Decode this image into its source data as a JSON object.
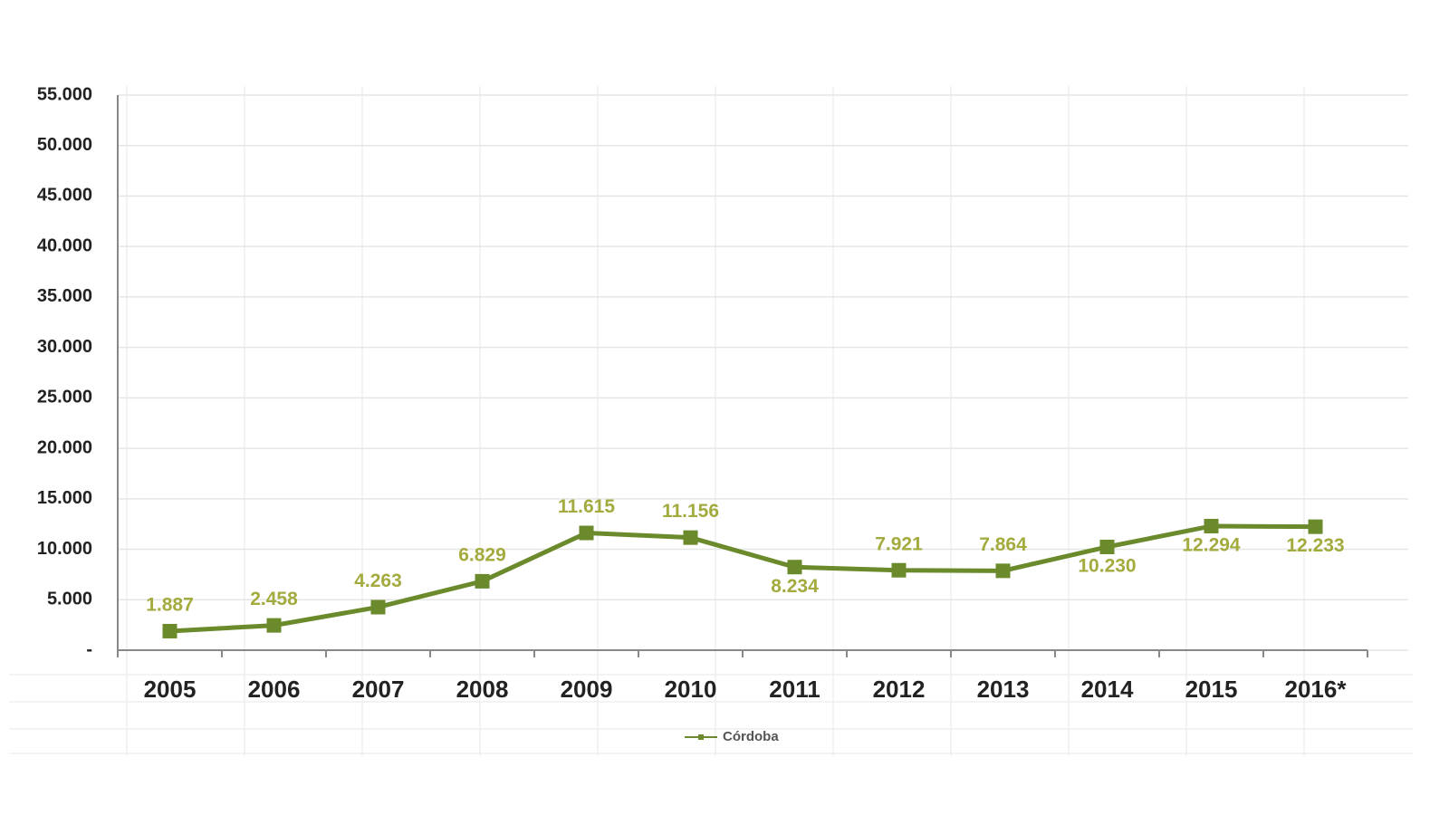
{
  "chart_data": {
    "type": "line",
    "categories": [
      "2005",
      "2006",
      "2007",
      "2008",
      "2009",
      "2010",
      "2011",
      "2012",
      "2013",
      "2014",
      "2015",
      "2016*"
    ],
    "series": [
      {
        "name": "Córdoba",
        "color": "#6b8a2c",
        "values": [
          1887,
          2458,
          4263,
          6829,
          11615,
          11156,
          8234,
          7921,
          7864,
          10230,
          12294,
          12233
        ],
        "value_labels": [
          "1.887",
          "2.458",
          "4.263",
          "6.829",
          "11.615",
          "11.156",
          "8.234",
          "7.921",
          "7.864",
          "10.230",
          "12.294",
          "12.233"
        ]
      }
    ],
    "ylim": [
      0,
      55000
    ],
    "yticks": [
      {
        "value": 0,
        "label": "-"
      },
      {
        "value": 5000,
        "label": "5.000"
      },
      {
        "value": 10000,
        "label": "10.000"
      },
      {
        "value": 15000,
        "label": "15.000"
      },
      {
        "value": 20000,
        "label": "20.000"
      },
      {
        "value": 25000,
        "label": "25.000"
      },
      {
        "value": 30000,
        "label": "30.000"
      },
      {
        "value": 35000,
        "label": "35.000"
      },
      {
        "value": 40000,
        "label": "40.000"
      },
      {
        "value": 45000,
        "label": "45.000"
      },
      {
        "value": 50000,
        "label": "50.000"
      },
      {
        "value": 55000,
        "label": "55.000"
      }
    ],
    "grid": true,
    "legend": "bottom"
  }
}
